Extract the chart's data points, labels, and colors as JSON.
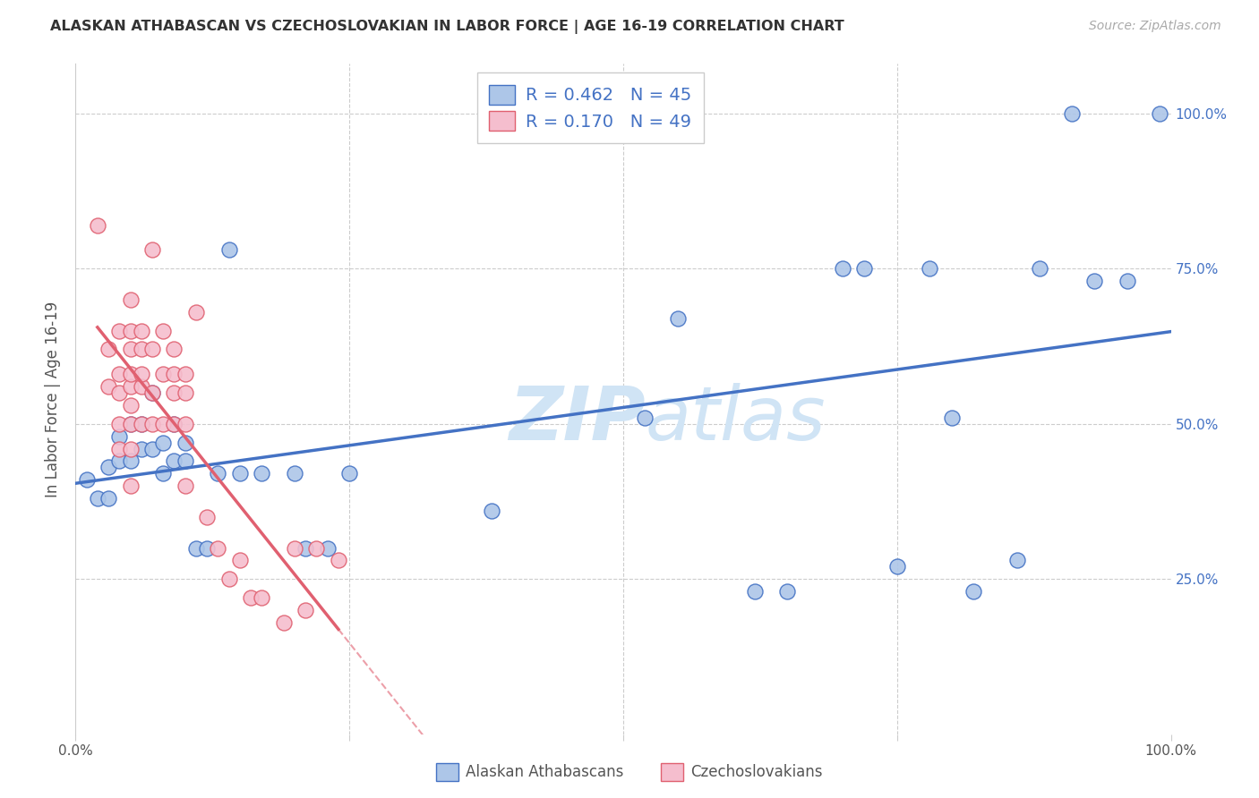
{
  "title": "ALASKAN ATHABASCAN VS CZECHOSLOVAKIAN IN LABOR FORCE | AGE 16-19 CORRELATION CHART",
  "source": "Source: ZipAtlas.com",
  "ylabel": "In Labor Force | Age 16-19",
  "right_yticks": [
    "100.0%",
    "75.0%",
    "50.0%",
    "25.0%"
  ],
  "right_ytick_vals": [
    1.0,
    0.75,
    0.5,
    0.25
  ],
  "legend_blue_r": "0.462",
  "legend_blue_n": "45",
  "legend_pink_r": "0.170",
  "legend_pink_n": "49",
  "blue_color": "#adc6e8",
  "pink_color": "#f5bece",
  "blue_line_color": "#4472c4",
  "pink_line_color": "#e06070",
  "watermark_color": "#d0e4f5",
  "blue_scatter_x": [
    0.01,
    0.02,
    0.03,
    0.03,
    0.04,
    0.04,
    0.05,
    0.05,
    0.06,
    0.06,
    0.07,
    0.07,
    0.08,
    0.08,
    0.09,
    0.09,
    0.1,
    0.1,
    0.11,
    0.12,
    0.13,
    0.14,
    0.15,
    0.17,
    0.2,
    0.21,
    0.23,
    0.25,
    0.38,
    0.52,
    0.55,
    0.62,
    0.65,
    0.7,
    0.72,
    0.75,
    0.78,
    0.8,
    0.82,
    0.86,
    0.88,
    0.91,
    0.93,
    0.96,
    0.99
  ],
  "blue_scatter_y": [
    0.41,
    0.38,
    0.43,
    0.38,
    0.48,
    0.44,
    0.44,
    0.5,
    0.46,
    0.5,
    0.55,
    0.46,
    0.42,
    0.47,
    0.44,
    0.5,
    0.47,
    0.44,
    0.3,
    0.3,
    0.42,
    0.78,
    0.42,
    0.42,
    0.42,
    0.3,
    0.3,
    0.42,
    0.36,
    0.51,
    0.67,
    0.23,
    0.23,
    0.75,
    0.75,
    0.27,
    0.75,
    0.51,
    0.23,
    0.28,
    0.75,
    1.0,
    0.73,
    0.73,
    1.0
  ],
  "pink_scatter_x": [
    0.02,
    0.03,
    0.03,
    0.04,
    0.04,
    0.04,
    0.04,
    0.04,
    0.05,
    0.05,
    0.05,
    0.05,
    0.05,
    0.05,
    0.05,
    0.05,
    0.05,
    0.06,
    0.06,
    0.06,
    0.06,
    0.06,
    0.07,
    0.07,
    0.07,
    0.07,
    0.08,
    0.08,
    0.08,
    0.09,
    0.09,
    0.09,
    0.09,
    0.1,
    0.1,
    0.1,
    0.1,
    0.11,
    0.12,
    0.13,
    0.14,
    0.15,
    0.16,
    0.17,
    0.19,
    0.2,
    0.21,
    0.22,
    0.24
  ],
  "pink_scatter_y": [
    0.82,
    0.56,
    0.62,
    0.55,
    0.58,
    0.5,
    0.65,
    0.46,
    0.53,
    0.56,
    0.62,
    0.46,
    0.5,
    0.58,
    0.65,
    0.4,
    0.7,
    0.56,
    0.5,
    0.58,
    0.65,
    0.62,
    0.55,
    0.62,
    0.5,
    0.78,
    0.58,
    0.5,
    0.65,
    0.58,
    0.5,
    0.55,
    0.62,
    0.58,
    0.5,
    0.55,
    0.4,
    0.68,
    0.35,
    0.3,
    0.25,
    0.28,
    0.22,
    0.22,
    0.18,
    0.3,
    0.2,
    0.3,
    0.28
  ],
  "xlim": [
    0.0,
    1.0
  ],
  "ylim": [
    0.0,
    1.08
  ],
  "figsize": [
    14.06,
    8.92
  ],
  "dpi": 100
}
